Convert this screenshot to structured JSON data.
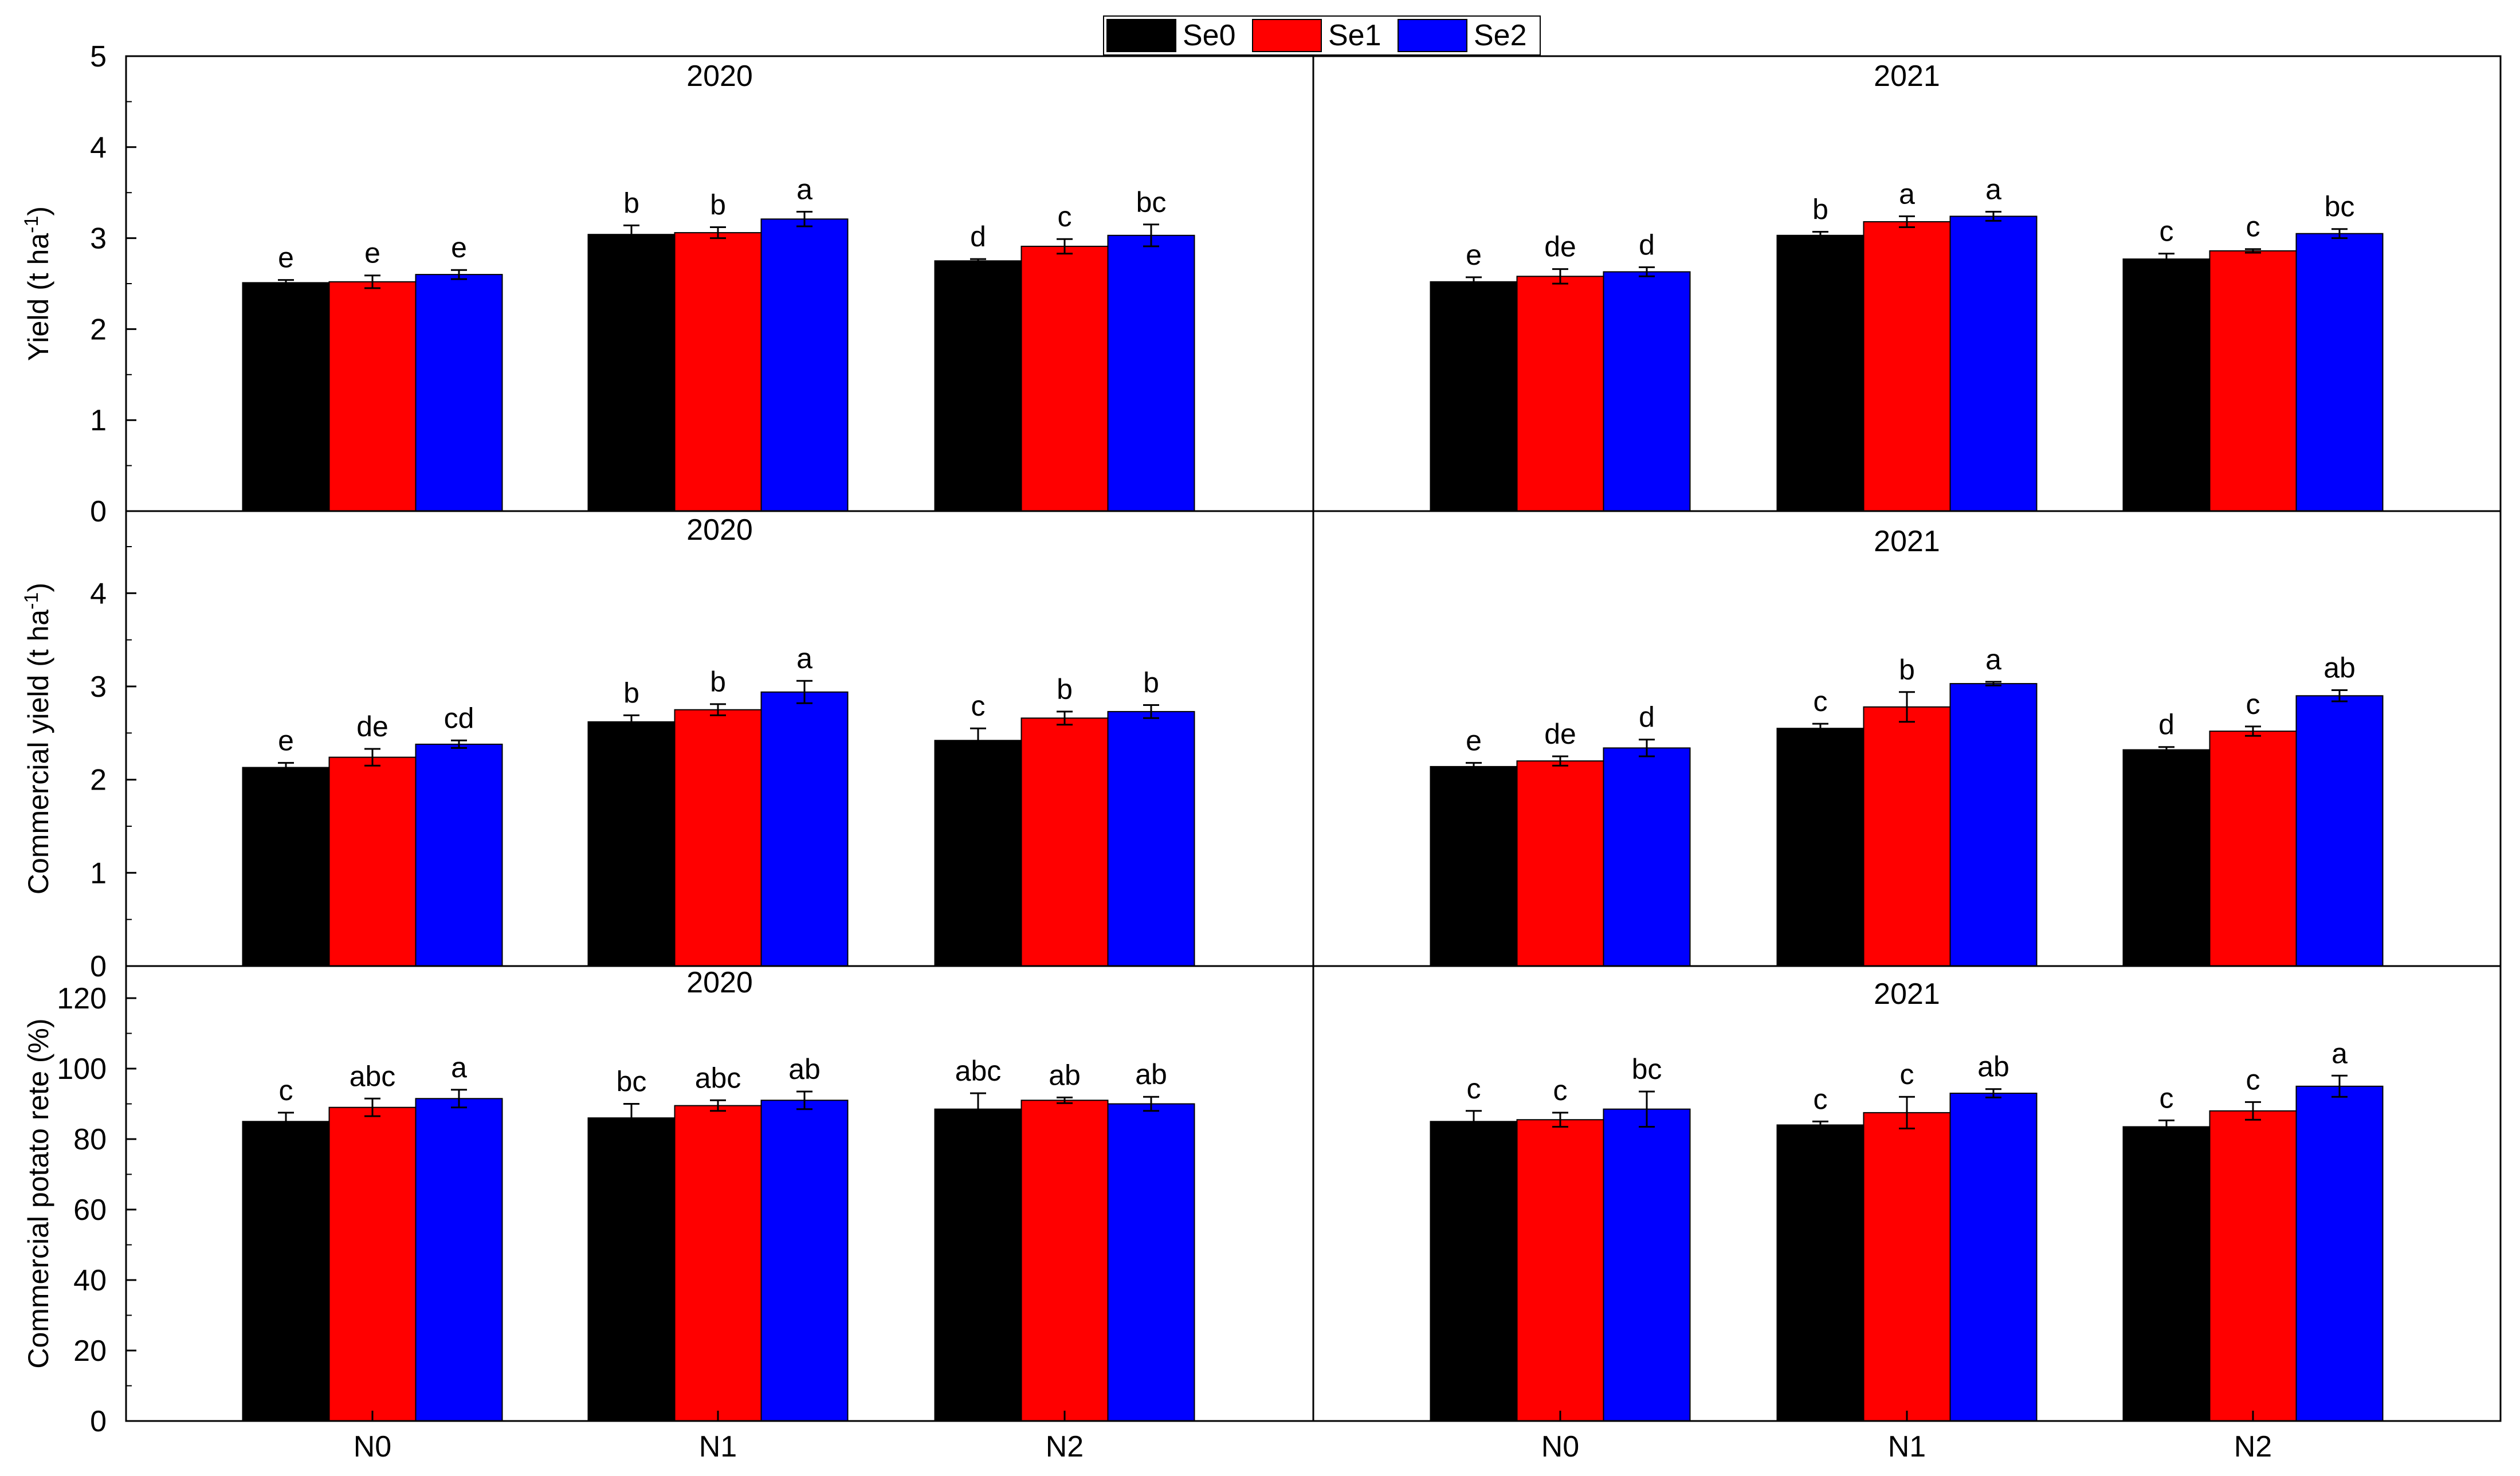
{
  "legend": {
    "items": [
      {
        "label": "Se0",
        "color": "#000000"
      },
      {
        "label": "Se1",
        "color": "#ff0000"
      },
      {
        "label": "Se2",
        "color": "#0000ff"
      }
    ]
  },
  "chart_data": {
    "type": "bar",
    "categories": [
      "N0",
      "N1",
      "N2"
    ],
    "series_names": [
      "Se0",
      "Se1",
      "Se2"
    ],
    "colors": {
      "Se0": "#000000",
      "Se1": "#ff0000",
      "Se2": "#0000ff"
    },
    "rows": [
      {
        "ylabel": "Yield (t ha",
        "ylabel_sup": "-1",
        "ylabel_close": ")",
        "ylim": [
          0,
          5
        ],
        "yticks": [
          0,
          1,
          2,
          3,
          4,
          5
        ],
        "panels": [
          {
            "title": "2020",
            "values": [
              [
                2.51,
                2.52,
                2.6
              ],
              [
                3.04,
                3.06,
                3.21
              ],
              [
                2.75,
                2.91,
                3.03
              ]
            ],
            "errors": [
              [
                0.03,
                0.07,
                0.05
              ],
              [
                0.1,
                0.06,
                0.08
              ],
              [
                0.02,
                0.08,
                0.12
              ]
            ],
            "letters": [
              [
                "e",
                "e",
                "e"
              ],
              [
                "b",
                "b",
                "a"
              ],
              [
                "d",
                "c",
                "bc"
              ]
            ]
          },
          {
            "title": "2021",
            "values": [
              [
                2.52,
                2.58,
                2.63
              ],
              [
                3.03,
                3.18,
                3.24
              ],
              [
                2.77,
                2.86,
                3.05
              ]
            ],
            "errors": [
              [
                0.05,
                0.08,
                0.05
              ],
              [
                0.04,
                0.06,
                0.05
              ],
              [
                0.06,
                0.02,
                0.05
              ]
            ],
            "letters": [
              [
                "e",
                "de",
                "d"
              ],
              [
                "b",
                "a",
                "a"
              ],
              [
                "c",
                "c",
                "bc"
              ]
            ]
          }
        ]
      },
      {
        "ylabel": "Commercial yield (t ha",
        "ylabel_sup": "-1",
        "ylabel_close": ")",
        "ylim": [
          0,
          5
        ],
        "yticks": [
          0,
          1,
          2,
          3,
          4
        ],
        "panels": [
          {
            "title": "2020",
            "values": [
              [
                2.13,
                2.24,
                2.38
              ],
              [
                2.62,
                2.75,
                2.94
              ],
              [
                2.42,
                2.66,
                2.73
              ]
            ],
            "errors": [
              [
                0.05,
                0.09,
                0.04
              ],
              [
                0.07,
                0.06,
                0.12
              ],
              [
                0.13,
                0.07,
                0.07
              ]
            ],
            "letters": [
              [
                "e",
                "de",
                "cd"
              ],
              [
                "b",
                "b",
                "a"
              ],
              [
                "c",
                "b",
                "b"
              ]
            ]
          },
          {
            "title": "2021",
            "values": [
              [
                2.14,
                2.2,
                2.34
              ],
              [
                2.55,
                2.78,
                3.03
              ],
              [
                2.32,
                2.52,
                2.9
              ]
            ],
            "errors": [
              [
                0.04,
                0.05,
                0.09
              ],
              [
                0.05,
                0.16,
                0.02
              ],
              [
                0.03,
                0.05,
                0.06
              ]
            ],
            "letters": [
              [
                "e",
                "de",
                "d"
              ],
              [
                "c",
                "b",
                "a"
              ],
              [
                "d",
                "c",
                "ab"
              ]
            ]
          }
        ]
      },
      {
        "ylabel": "Commercial potato rete (%)",
        "ylabel_sup": "",
        "ylabel_close": "",
        "ylim": [
          0,
          128
        ],
        "yticks": [
          0,
          20,
          40,
          60,
          80,
          100,
          120
        ],
        "panels": [
          {
            "title": "2020",
            "values": [
              [
                85.0,
                89.0,
                91.5
              ],
              [
                86.0,
                89.5,
                91.0
              ],
              [
                88.5,
                91.0,
                90.0
              ]
            ],
            "errors": [
              [
                2.5,
                2.5,
                2.5
              ],
              [
                4.0,
                1.5,
                2.5
              ],
              [
                4.5,
                0.8,
                2.0
              ]
            ],
            "letters": [
              [
                "c",
                "abc",
                "a"
              ],
              [
                "bc",
                "abc",
                "ab"
              ],
              [
                "abc",
                "ab",
                "ab"
              ]
            ]
          },
          {
            "title": "2021",
            "values": [
              [
                85.0,
                85.5,
                88.5
              ],
              [
                84.0,
                87.5,
                93.0
              ],
              [
                83.5,
                88.0,
                95.0
              ]
            ],
            "errors": [
              [
                3.0,
                2.0,
                5.0
              ],
              [
                1.0,
                4.5,
                1.2
              ],
              [
                1.8,
                2.5,
                3.0
              ]
            ],
            "letters": [
              [
                "c",
                "c",
                "bc"
              ],
              [
                "c",
                "c",
                "ab"
              ],
              [
                "c",
                "c",
                "a"
              ]
            ]
          }
        ]
      }
    ]
  }
}
